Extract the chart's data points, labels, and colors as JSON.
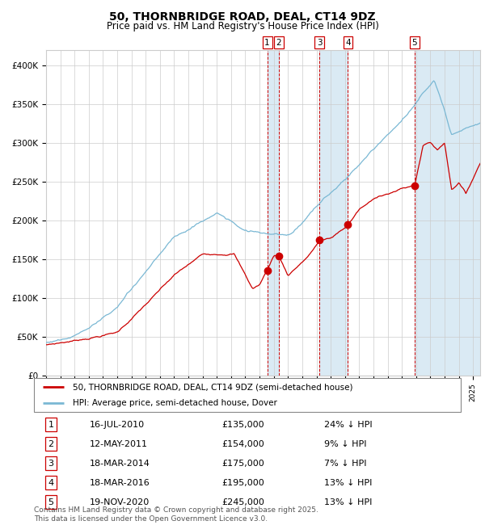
{
  "title": "50, THORNBRIDGE ROAD, DEAL, CT14 9DZ",
  "subtitle": "Price paid vs. HM Land Registry's House Price Index (HPI)",
  "legend_line1": "50, THORNBRIDGE ROAD, DEAL, CT14 9DZ (semi-detached house)",
  "legend_line2": "HPI: Average price, semi-detached house, Dover",
  "footer": "Contains HM Land Registry data © Crown copyright and database right 2025.\nThis data is licensed under the Open Government Licence v3.0.",
  "transactions": [
    {
      "num": 1,
      "date": "16-JUL-2010",
      "price": 135000,
      "pct": "24%",
      "direction": "↓",
      "year": 2010.54
    },
    {
      "num": 2,
      "date": "12-MAY-2011",
      "price": 154000,
      "pct": "9%",
      "direction": "↓",
      "year": 2011.36
    },
    {
      "num": 3,
      "date": "18-MAR-2014",
      "price": 175000,
      "pct": "7%",
      "direction": "↓",
      "year": 2014.21
    },
    {
      "num": 4,
      "date": "18-MAR-2016",
      "price": 195000,
      "pct": "13%",
      "direction": "↓",
      "year": 2016.21
    },
    {
      "num": 5,
      "date": "19-NOV-2020",
      "price": 245000,
      "pct": "13%",
      "direction": "↓",
      "year": 2020.88
    }
  ],
  "red_color": "#cc0000",
  "blue_color": "#7ab8d4",
  "blue_fill_color": "#daeaf4",
  "grid_color": "#cccccc",
  "ylim": [
    0,
    420000
  ],
  "xlim_start": 1995,
  "xlim_end": 2025.5
}
